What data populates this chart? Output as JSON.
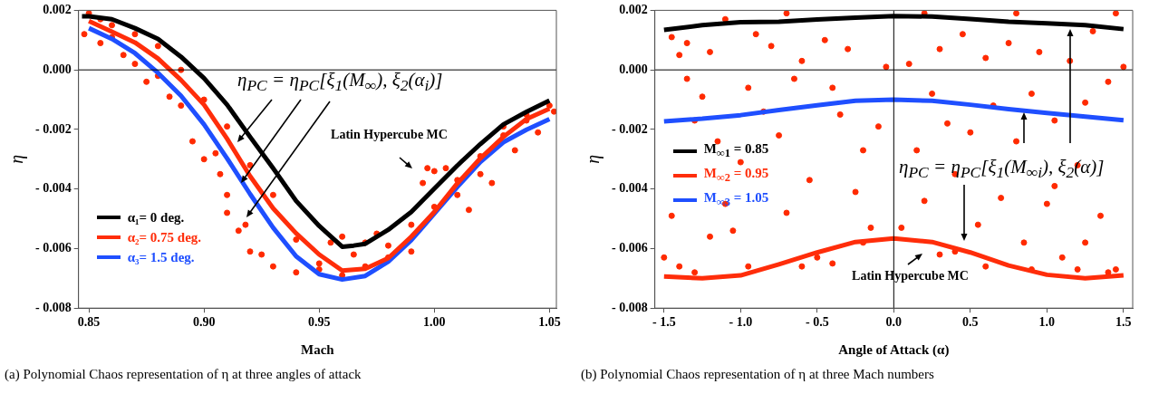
{
  "chart_data": [
    {
      "type": "line",
      "xlabel": "Mach",
      "ylabel": "η",
      "xlim": [
        0.8455,
        1.053
      ],
      "ylim": [
        -0.008,
        0.002
      ],
      "xticks": [
        {
          "value": 0.85,
          "label": "0.85"
        },
        {
          "value": 0.9,
          "label": "0.90"
        },
        {
          "value": 0.95,
          "label": "0.95"
        },
        {
          "value": 1.0,
          "label": "1.00"
        },
        {
          "value": 1.05,
          "label": "1.05"
        }
      ],
      "yticks": [
        {
          "value": -0.008,
          "label": "- 0.008"
        },
        {
          "value": -0.006,
          "label": "- 0.006"
        },
        {
          "value": -0.004,
          "label": "- 0.004"
        },
        {
          "value": -0.002,
          "label": "- 0.002"
        },
        {
          "value": 0,
          "label": "0.000"
        },
        {
          "value": 0.002,
          "label": "0.002"
        }
      ],
      "legend": "bottom left",
      "ref_lines": [
        {
          "axis": "y",
          "value": 0,
          "color": "#000000"
        }
      ],
      "series": [
        {
          "type": "scatter",
          "marker": "circle",
          "color": "#ff2a00",
          "x": [
            0.848,
            0.855,
            0.86,
            0.865,
            0.87,
            0.875,
            0.88,
            0.885,
            0.89,
            0.895,
            0.9,
            0.905,
            0.907,
            0.91,
            0.91,
            0.915,
            0.918,
            0.92,
            0.925,
            0.93,
            0.94,
            0.95,
            0.955,
            0.96,
            0.965,
            0.97,
            0.975,
            0.98,
            0.99,
            0.995,
            0.997,
            1.0,
            1.005,
            1.01,
            1.015,
            1.02,
            1.025,
            1.03,
            1.035,
            1.04,
            1.045,
            1.05,
            1.052,
            0.86,
            0.87,
            0.88,
            0.89,
            0.9,
            0.91,
            0.92,
            0.93,
            0.94,
            0.95,
            0.96,
            0.97,
            0.98,
            0.99,
            1.0,
            1.01,
            1.02,
            1.03,
            1.04,
            0.85,
            0.855
          ],
          "values": [
            0.0012,
            0.0009,
            0.0011,
            0.0005,
            0.0002,
            -0.0004,
            -0.0002,
            -0.0009,
            -0.0012,
            -0.0024,
            -0.003,
            -0.0028,
            -0.0035,
            -0.0042,
            -0.0048,
            -0.0054,
            -0.0052,
            -0.0061,
            -0.0062,
            -0.0066,
            -0.0068,
            -0.0067,
            -0.0058,
            -0.0056,
            -0.0062,
            -0.0058,
            -0.0055,
            -0.0063,
            -0.0061,
            -0.0038,
            -0.0033,
            -0.0034,
            -0.0033,
            -0.0042,
            -0.0047,
            -0.0035,
            -0.0038,
            -0.0022,
            -0.0027,
            -0.0017,
            -0.0021,
            -0.0012,
            -0.0014,
            0.0015,
            0.0012,
            0.0008,
            0.0,
            -0.001,
            -0.0019,
            -0.0032,
            -0.0042,
            -0.0057,
            -0.0065,
            -0.0069,
            -0.0066,
            -0.0059,
            -0.0052,
            -0.0046,
            -0.0037,
            -0.0029,
            -0.0019,
            -0.0015,
            0.0019,
            0.0017
          ]
        },
        {
          "marker": "none",
          "name": "α₁= 0 deg.",
          "color": "#000000",
          "x": [
            0.847,
            0.85,
            0.86,
            0.87,
            0.88,
            0.89,
            0.9,
            0.91,
            0.92,
            0.93,
            0.94,
            0.95,
            0.96,
            0.965,
            0.97,
            0.98,
            0.99,
            1.0,
            1.01,
            1.02,
            1.03,
            1.04,
            1.05
          ],
          "values": [
            0.0018,
            0.0018,
            0.0017,
            0.0014,
            0.00104,
            0.00044,
            -0.00028,
            -0.00117,
            -0.00225,
            -0.0033,
            -0.0044,
            -0.00524,
            -0.00594,
            -0.0059,
            -0.00584,
            -0.00537,
            -0.00477,
            -0.00399,
            -0.00321,
            -0.00249,
            -0.00183,
            -0.00141,
            -0.00103
          ]
        },
        {
          "marker": "none",
          "name": "α₂= 0.75 deg.",
          "color": "#ff2d0a",
          "x": [
            0.85,
            0.86,
            0.87,
            0.88,
            0.89,
            0.9,
            0.91,
            0.92,
            0.93,
            0.94,
            0.95,
            0.96,
            0.97,
            0.98,
            0.99,
            1.0,
            1.01,
            1.02,
            1.03,
            1.04,
            1.05
          ],
          "values": [
            0.00164,
            0.00128,
            0.00092,
            0.00038,
            -0.00034,
            -0.00117,
            -0.00231,
            -0.00357,
            -0.00465,
            -0.00549,
            -0.0062,
            -0.00674,
            -0.00668,
            -0.00632,
            -0.0056,
            -0.00477,
            -0.00381,
            -0.00297,
            -0.00225,
            -0.00165,
            -0.0013
          ]
        },
        {
          "marker": "none",
          "name": "α₃= 1.5 deg.",
          "color": "#1f4fff",
          "x": [
            0.85,
            0.86,
            0.87,
            0.88,
            0.89,
            0.9,
            0.91,
            0.92,
            0.93,
            0.94,
            0.95,
            0.96,
            0.97,
            0.98,
            0.99,
            1.0,
            1.01,
            1.02,
            1.03,
            1.04,
            1.05
          ],
          "values": [
            0.0014,
            0.00104,
            0.00056,
            -0.0001,
            -0.00087,
            -0.00183,
            -0.00297,
            -0.00417,
            -0.0053,
            -0.00626,
            -0.00686,
            -0.00704,
            -0.00692,
            -0.00644,
            -0.00572,
            -0.00483,
            -0.00393,
            -0.00309,
            -0.00243,
            -0.00201,
            -0.00165
          ]
        }
      ],
      "annotations": [
        "η$_{PC}$ = η$_{PC}$[ξ$_{1}$(M$_{∞}$), ξ$_{2}$(α$_{i}$)]",
        "Latin Hypercube MC",
        "(a) Polynomial Chaos representation of η at three angles of attack"
      ]
    },
    {
      "type": "line",
      "xlabel": "Angle of Attack (α)",
      "ylabel": "η",
      "xlim": [
        -1.56,
        1.56
      ],
      "ylim": [
        -0.008,
        0.002
      ],
      "xticks": [
        {
          "value": -1.5,
          "label": "- 1.5"
        },
        {
          "value": -1,
          "label": "- 1.0"
        },
        {
          "value": -0.5,
          "label": "- 0.5"
        },
        {
          "value": 0,
          "label": "0.0"
        },
        {
          "value": 0.5,
          "label": "0.5"
        },
        {
          "value": 1,
          "label": "1.0"
        },
        {
          "value": 1.5,
          "label": "1.5"
        }
      ],
      "yticks": [
        {
          "value": -0.008,
          "label": "- 0.008"
        },
        {
          "value": -0.006,
          "label": "- 0.006"
        },
        {
          "value": -0.004,
          "label": "- 0.004"
        },
        {
          "value": -0.002,
          "label": "- 0.002"
        },
        {
          "value": 0,
          "label": "0.000"
        },
        {
          "value": 0.002,
          "label": "0.002"
        }
      ],
      "legend": "left",
      "ref_lines": [
        {
          "axis": "y",
          "value": 0,
          "color": "#000000"
        },
        {
          "axis": "x",
          "value": 0,
          "color": "#000000"
        }
      ],
      "series": [
        {
          "type": "scatter",
          "marker": "circle",
          "color": "#ff2a00",
          "x": [
            -1.45,
            -1.4,
            -1.35,
            -1.3,
            -1.25,
            -1.2,
            -1.15,
            -1.1,
            -1.05,
            -1.0,
            -0.95,
            -0.9,
            -0.85,
            -0.8,
            -0.75,
            -0.7,
            -0.65,
            -0.6,
            -0.55,
            -0.5,
            -0.45,
            -0.4,
            -0.35,
            -0.3,
            -0.25,
            -0.2,
            -0.15,
            -0.1,
            -0.05,
            0.05,
            0.1,
            0.15,
            0.2,
            0.25,
            0.3,
            0.35,
            0.4,
            0.45,
            0.5,
            0.55,
            0.6,
            0.65,
            0.7,
            0.75,
            0.8,
            0.85,
            0.9,
            0.95,
            1.0,
            1.05,
            1.1,
            1.15,
            1.2,
            1.25,
            1.3,
            1.35,
            1.4,
            1.45,
            1.5,
            -1.5,
            -1.4,
            -1.3,
            -1.2,
            -1.45,
            -1.35,
            -0.6,
            -0.4,
            -0.2,
            0.3,
            0.4,
            0.6,
            0.9,
            1.2,
            1.4,
            1.25,
            -1.1,
            -0.7,
            0.2,
            0.8,
            1.45,
            -0.95,
            1.05
          ],
          "values": [
            0.0011,
            0.0005,
            -0.0003,
            -0.0017,
            -0.0009,
            0.0006,
            -0.0024,
            -0.0045,
            -0.0054,
            -0.0031,
            -0.0006,
            0.0012,
            -0.0014,
            0.0008,
            -0.0022,
            -0.0048,
            -0.0003,
            0.0003,
            -0.0037,
            -0.0063,
            0.001,
            -0.0006,
            -0.0015,
            0.0007,
            -0.0041,
            -0.0027,
            -0.0053,
            -0.0019,
            0.0001,
            -0.0053,
            0.0002,
            -0.0027,
            -0.0044,
            -0.0008,
            0.0007,
            -0.0018,
            -0.0035,
            0.0012,
            -0.0021,
            -0.0052,
            0.0004,
            -0.0012,
            -0.0043,
            0.0009,
            -0.0024,
            -0.0058,
            -0.0008,
            0.0006,
            -0.0045,
            -0.0017,
            -0.0063,
            0.0003,
            -0.0032,
            -0.0011,
            0.0013,
            -0.0049,
            -0.0004,
            -0.0067,
            0.0001,
            -0.0063,
            -0.0066,
            -0.0068,
            -0.0056,
            -0.0049,
            0.0009,
            -0.0066,
            -0.0065,
            -0.0058,
            -0.0062,
            -0.0061,
            -0.0066,
            -0.0067,
            -0.0067,
            -0.0068,
            -0.0058,
            0.0017,
            0.0019,
            0.0019,
            0.0019,
            0.0019,
            -0.0066,
            -0.0039
          ]
        },
        {
          "marker": "none",
          "name": "M$_{∞1}$ = 0.85",
          "color": "#000000",
          "x": [
            -1.5,
            -1.25,
            -1,
            -0.75,
            -0.5,
            -0.25,
            0,
            0.25,
            0.5,
            0.75,
            1,
            1.25,
            1.5
          ],
          "values": [
            0.00134,
            0.0015,
            0.0016,
            0.00162,
            0.00169,
            0.00175,
            0.00181,
            0.00179,
            0.00171,
            0.00162,
            0.00156,
            0.0015,
            0.00137
          ]
        },
        {
          "marker": "none",
          "name": "M$_{∞2}$ = 0.95",
          "color": "#ff2d0a",
          "x": [
            -1.5,
            -1.25,
            -1,
            -0.75,
            -0.5,
            -0.25,
            0,
            0.25,
            0.5,
            0.75,
            1,
            1.25,
            1.5
          ],
          "values": [
            -0.00694,
            -0.007,
            -0.0069,
            -0.00653,
            -0.00613,
            -0.00578,
            -0.00566,
            -0.00578,
            -0.00613,
            -0.00657,
            -0.00688,
            -0.007,
            -0.0069
          ]
        },
        {
          "marker": "none",
          "name": "M$_{∞3}$ = 1.05",
          "color": "#1f4fff",
          "x": [
            -1.5,
            -1.25,
            -1,
            -0.75,
            -0.5,
            -0.25,
            0,
            0.25,
            0.5,
            0.75,
            1,
            1.25,
            1.5
          ],
          "values": [
            -0.00173,
            -0.00164,
            -0.00152,
            -0.00135,
            -0.00119,
            -0.00104,
            -0.001,
            -0.00104,
            -0.00117,
            -0.00132,
            -0.00145,
            -0.00157,
            -0.00169
          ]
        }
      ],
      "annotations": [
        "η$_{PC}$ = η$_{PC}$[ξ$_{1}$(M$_{∞i}$), ξ$_{2}$(α)]",
        "Latin Hypercube MC",
        "(b) Polynomial Chaos representation of η at three Mach numbers"
      ]
    }
  ]
}
